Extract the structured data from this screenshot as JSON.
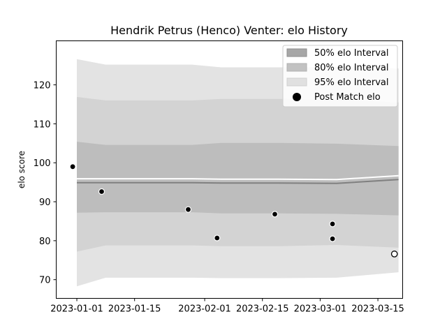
{
  "chart_data": {
    "type": "line",
    "title": "Hendrik Petrus (Henco) Venter: elo History",
    "xlabel": "",
    "ylabel": "elo score",
    "xlim": [
      "2022-12-27",
      "2023-03-21"
    ],
    "ylim": [
      65.2,
      131.3
    ],
    "x_ticks": [
      "2023-01-01",
      "2023-01-15",
      "2023-02-01",
      "2023-02-15",
      "2023-03-01",
      "2023-03-15"
    ],
    "y_ticks": [
      70,
      80,
      90,
      100,
      110,
      120
    ],
    "grid": false,
    "legend_position": "top-right",
    "legend": [
      {
        "label": "50% elo Interval",
        "type": "band"
      },
      {
        "label": "80% elo Interval",
        "type": "band"
      },
      {
        "label": "95% elo Interval",
        "type": "band"
      },
      {
        "label": "Post Match elo",
        "type": "marker"
      }
    ],
    "band_colors": {
      "p95": "#e3e3e3",
      "p80": "#d3d3d3",
      "p50": "#bdbdbd"
    },
    "mean_color": "#808080",
    "series_x": [
      "2023-01-01",
      "2023-01-08",
      "2023-01-29",
      "2023-02-05",
      "2023-02-19",
      "2023-03-05",
      "2023-03-20"
    ],
    "mean": [
      94.9,
      94.9,
      94.9,
      94.8,
      94.8,
      94.7,
      95.7
    ],
    "p50_low": [
      87.2,
      87.3,
      87.3,
      87.0,
      87.0,
      86.9,
      86.5
    ],
    "p50_high": [
      105.4,
      104.6,
      104.6,
      105.1,
      105.1,
      104.9,
      104.3
    ],
    "p80_low": [
      77.2,
      78.8,
      78.8,
      78.6,
      78.6,
      78.9,
      78.2
    ],
    "p80_high": [
      116.9,
      116.0,
      116.0,
      116.4,
      116.4,
      116.2,
      115.5
    ],
    "p95_low": [
      68.3,
      70.5,
      70.5,
      70.4,
      70.4,
      70.5,
      71.9
    ],
    "p95_high": [
      126.6,
      125.2,
      125.2,
      124.5,
      124.5,
      124.6,
      124.2
    ],
    "points": [
      {
        "x": "2022-12-31",
        "y": 99.0
      },
      {
        "x": "2023-01-07",
        "y": 92.6
      },
      {
        "x": "2023-01-28",
        "y": 88.0
      },
      {
        "x": "2023-02-04",
        "y": 80.7
      },
      {
        "x": "2023-02-18",
        "y": 86.8
      },
      {
        "x": "2023-03-04",
        "y": 84.3
      },
      {
        "x": "2023-03-04",
        "y": 80.5
      },
      {
        "x": "2023-03-19",
        "y": 76.6,
        "hollow": true
      }
    ]
  }
}
